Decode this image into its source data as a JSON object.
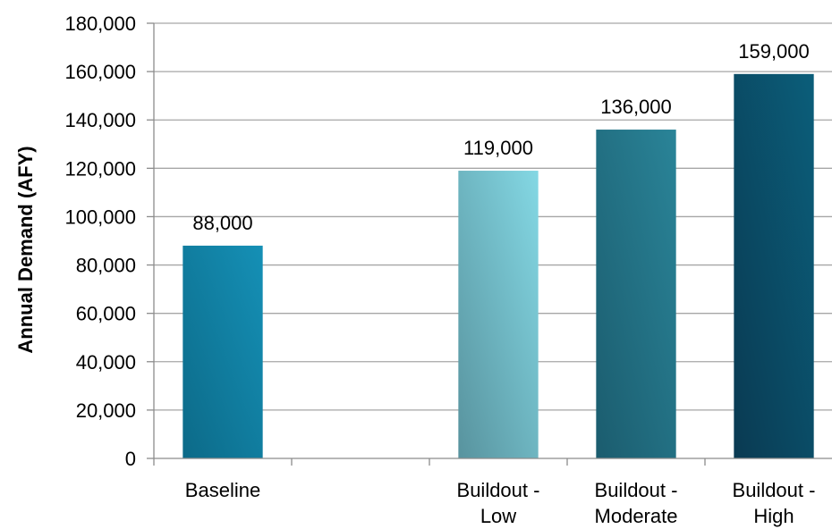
{
  "chart_data": {
    "type": "bar",
    "title": "",
    "xlabel": "",
    "ylabel": "Annual Demand (AFY)",
    "ylim": [
      0,
      180000
    ],
    "y_ticks": [
      "0",
      "20,000",
      "40,000",
      "60,000",
      "80,000",
      "100,000",
      "120,000",
      "140,000",
      "160,000",
      "180,000"
    ],
    "grid": true,
    "categories": [
      {
        "lines": [
          "Baseline"
        ],
        "value": 88000,
        "data_label": "88,000",
        "color_light": "#1590b6",
        "color_dark": "#0c6a88"
      },
      {
        "lines": [
          ""
        ],
        "value": null,
        "data_label": "",
        "color_light": "",
        "color_dark": ""
      },
      {
        "lines": [
          "Buildout -",
          "Low"
        ],
        "value": 119000,
        "data_label": "119,000",
        "color_light": "#84d8e4",
        "color_dark": "#58939e"
      },
      {
        "lines": [
          "Buildout -",
          "Moderate"
        ],
        "value": 136000,
        "data_label": "136,000",
        "color_light": "#2a8498",
        "color_dark": "#1b5c6e"
      },
      {
        "lines": [
          "Buildout -",
          "High"
        ],
        "value": 159000,
        "data_label": "159,000",
        "color_light": "#0b5e7a",
        "color_dark": "#0a3a52"
      }
    ]
  }
}
